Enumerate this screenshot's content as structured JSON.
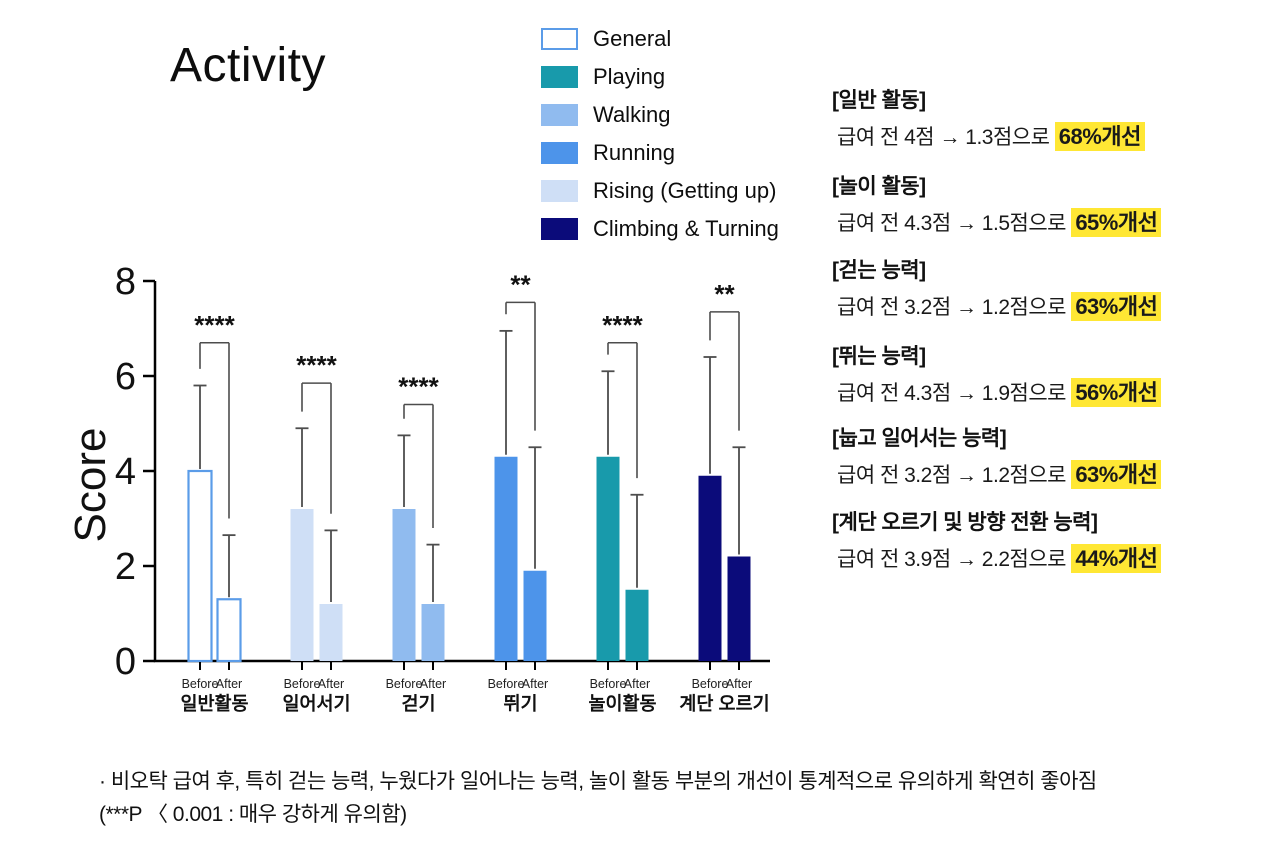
{
  "title": "Activity",
  "legend": [
    {
      "label": "General",
      "color": "#ffffff",
      "border": "#5b9ce8",
      "outline": true
    },
    {
      "label": "Playing",
      "color": "#189aab"
    },
    {
      "label": "Walking",
      "color": "#90bbef"
    },
    {
      "label": "Running",
      "color": "#4d94ea"
    },
    {
      "label": "Rising (Getting up)",
      "color": "#cfdff6"
    },
    {
      "label": "Climbing & Turning",
      "color": "#0b0b7a"
    }
  ],
  "chart_data": {
    "type": "bar",
    "title": "Activity",
    "xlabel": "",
    "ylabel": "Score",
    "ylim": [
      0,
      8
    ],
    "yticks": [
      0,
      2,
      4,
      6,
      8
    ],
    "grid": false,
    "bar_pair_labels": [
      "Before",
      "After"
    ],
    "groups": [
      {
        "category": "일반활동",
        "series": "General",
        "before": 4.0,
        "after": 1.3,
        "before_err_top": 5.8,
        "after_err_top": 2.65,
        "sig": "****",
        "sig_y": 6.7,
        "color": "#ffffff",
        "border": "#5b9ce8",
        "outline": true
      },
      {
        "category": "일어서기",
        "series": "Rising (Getting up)",
        "before": 3.2,
        "after": 1.2,
        "before_err_top": 4.9,
        "after_err_top": 2.75,
        "sig": "****",
        "sig_y": 5.85,
        "color": "#cfdff6"
      },
      {
        "category": "걷기",
        "series": "Walking",
        "before": 3.2,
        "after": 1.2,
        "before_err_top": 4.75,
        "after_err_top": 2.45,
        "sig": "****",
        "sig_y": 5.4,
        "color": "#90bbef"
      },
      {
        "category": "뛰기",
        "series": "Running",
        "before": 4.3,
        "after": 1.9,
        "before_err_top": 6.95,
        "after_err_top": 4.5,
        "sig": "**",
        "sig_y": 7.55,
        "color": "#4d94ea"
      },
      {
        "category": "놀이활동",
        "series": "Playing",
        "before": 4.3,
        "after": 1.5,
        "before_err_top": 6.1,
        "after_err_top": 3.5,
        "sig": "****",
        "sig_y": 6.7,
        "color": "#189aab"
      },
      {
        "category": "계단 오르기",
        "series": "Climbing & Turning",
        "before": 3.9,
        "after": 2.2,
        "before_err_top": 6.4,
        "after_err_top": 4.5,
        "sig": "**",
        "sig_y": 7.35,
        "color": "#0b0b7a"
      }
    ]
  },
  "annotations": [
    {
      "title": "[일반 활동]",
      "pre": "급여 전 4점 → 1.3점으로 ",
      "highlight": "68%개선"
    },
    {
      "title": "[놀이 활동]",
      "pre": "급여 전 4.3점 → 1.5점으로 ",
      "highlight": "65%개선"
    },
    {
      "title": "[걷는 능력]",
      "pre": "급여 전 3.2점 → 1.2점으로 ",
      "highlight": "63%개선"
    },
    {
      "title": "[뛰는 능력]",
      "pre": "급여 전 4.3점 → 1.9점으로 ",
      "highlight": "56%개선"
    },
    {
      "title": "[눕고 일어서는 능력]",
      "pre": "급여 전 3.2점 → 1.2점으로 ",
      "highlight": "63%개선"
    },
    {
      "title": "[계단 오르기 및 방향 전환 능력]",
      "pre": "급여 전 3.9점 → 2.2점으로 ",
      "highlight": "44%개선"
    }
  ],
  "footnote": {
    "line1": "· 비오탁 급여 후, 특히 걷는 능력, 누웠다가 일어나는 능력, 놀이 활동 부분의 개선이 통계적으로 유의하게 확연히 좋아짐",
    "line2": "(***P 〈 0.001 : 매우 강하게 유의함)"
  },
  "colors": {
    "highlight_bg": "#ffe734",
    "axis": "#000000",
    "error_bar": "#4d4d4d",
    "text": "#111111"
  }
}
